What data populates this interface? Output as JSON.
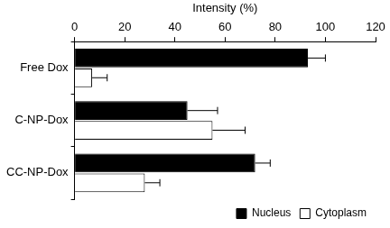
{
  "chart_data": {
    "type": "bar",
    "orientation": "horizontal",
    "x_label": "Intensity (%)",
    "categories": [
      "Free Dox",
      "C-NP-Dox",
      "CC-NP-Dox"
    ],
    "series": [
      {
        "name": "Nucleus",
        "color": "#000000",
        "values": [
          93,
          45,
          72
        ],
        "errors": [
          7,
          12,
          6
        ]
      },
      {
        "name": "Cytoplasm",
        "color": "#ffffff",
        "values": [
          7,
          55,
          28
        ],
        "errors": [
          6,
          13,
          6
        ]
      }
    ],
    "xlim": [
      0,
      120
    ],
    "xticks": [
      0,
      20,
      40,
      60,
      80,
      100,
      120
    ],
    "grid": false,
    "legend": "lower right"
  }
}
